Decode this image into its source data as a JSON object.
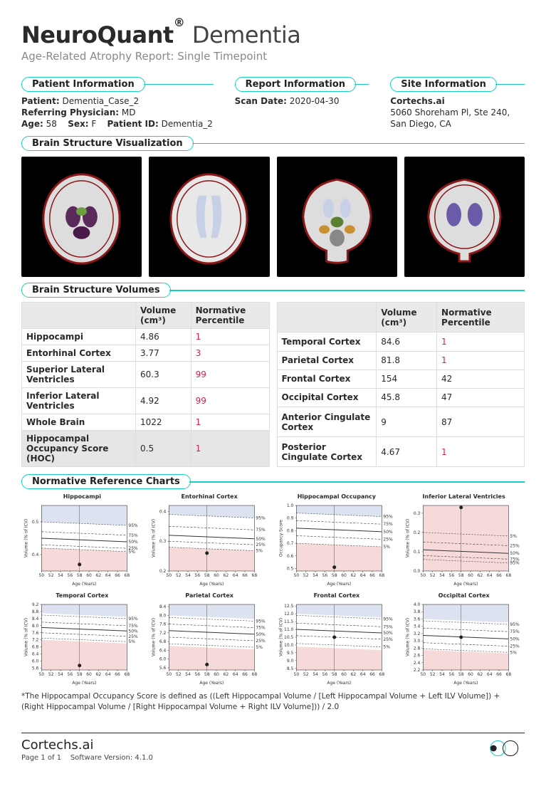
{
  "colors": {
    "teal": "#15d0c2",
    "red": "#d02050",
    "pink_fill": "#f6dada",
    "blue_fill": "#dce2ef",
    "grid": "#ddd",
    "text": "#2a2a2a"
  },
  "header": {
    "brand_strong": "NeuroQuant",
    "brand_sup": "®",
    "brand_light": "Dementia",
    "subtitle": "Age-Related Atrophy Report: Single Timepoint"
  },
  "info": {
    "patient": {
      "title": "Patient Information",
      "name_label": "Patient:",
      "name": "Dementia_Case_2",
      "ref_label": "Referring Physician:",
      "ref": "MD",
      "age_label": "Age:",
      "age": "58",
      "sex_label": "Sex:",
      "sex": "F",
      "pid_label": "Patient ID:",
      "pid": "Dementia_2"
    },
    "report": {
      "title": "Report Information",
      "scan_label": "Scan Date:",
      "scan": "2020-04-30"
    },
    "site": {
      "title": "Site Information",
      "name": "Cortechs.ai",
      "addr1": "5060 Shoreham Pl, Ste 240,",
      "addr2": "San Diego, CA"
    }
  },
  "viz_title": "Brain Structure Visualization",
  "vol_title": "Brain Structure Volumes",
  "table_headers": {
    "vol": "Volume (cm³)",
    "pct": "Normative Percentile"
  },
  "left_rows": [
    {
      "label": "Hippocampi",
      "vol": "4.86",
      "pct": "1",
      "red": true
    },
    {
      "label": "Entorhinal Cortex",
      "vol": "3.77",
      "pct": "3",
      "red": true
    },
    {
      "label": "Superior Lateral Ventricles",
      "vol": "60.3",
      "pct": "99",
      "red": true
    },
    {
      "label": "Inferior Lateral Ventricles",
      "vol": "4.92",
      "pct": "99",
      "red": true
    },
    {
      "label": "Whole Brain",
      "vol": "1022",
      "pct": "1",
      "red": true
    },
    {
      "label": "Hippocampal Occupancy Score (HOC)",
      "vol": "0.5",
      "pct": "1",
      "red": true,
      "hoc": true
    }
  ],
  "right_rows": [
    {
      "label": "Temporal Cortex",
      "vol": "84.6",
      "pct": "1",
      "red": true
    },
    {
      "label": "Parietal Cortex",
      "vol": "81.8",
      "pct": "1",
      "red": true
    },
    {
      "label": "Frontal Cortex",
      "vol": "154",
      "pct": "42",
      "red": false
    },
    {
      "label": "Occipital Cortex",
      "vol": "45.8",
      "pct": "47",
      "red": false
    },
    {
      "label": "Anterior Cingulate Cortex",
      "vol": "9",
      "pct": "87",
      "red": false
    },
    {
      "label": "Posterior Cingulate Cortex",
      "vol": "4.67",
      "pct": "1",
      "red": true
    }
  ],
  "charts_title": "Normative Reference Charts",
  "charts": [
    {
      "title": "Hippocampi",
      "ylabel": "Volume (% of ICV)",
      "yticks": [
        "0.4",
        "0.5"
      ],
      "ylim": [
        0.35,
        0.55
      ],
      "pt": [
        58,
        0.37
      ],
      "pink_top": 0.42,
      "blue_bot": 0.5,
      "curves": [
        0.5,
        0.47,
        0.45,
        0.43,
        0.42
      ]
    },
    {
      "title": "Entorhinal Cortex",
      "ylabel": "Volume (% of ICV)",
      "yticks": [
        "0.2",
        "0.3",
        "0.4"
      ],
      "ylim": [
        0.2,
        0.42
      ],
      "pt": [
        58,
        0.26
      ],
      "pink_top": 0.28,
      "blue_bot": 0.39,
      "curves": [
        0.39,
        0.35,
        0.32,
        0.3,
        0.28
      ]
    },
    {
      "title": "Hippocampal Occupancy",
      "ylabel": "Occupancy Score",
      "yticks": [
        "0.5",
        "0.6",
        "0.7",
        "0.8",
        "0.9",
        "1.0"
      ],
      "ylim": [
        0.48,
        1.0
      ],
      "pt": [
        58,
        0.51
      ],
      "pink_top": 0.7,
      "blue_bot": 0.94,
      "curves": [
        0.94,
        0.88,
        0.82,
        0.76,
        0.7
      ]
    },
    {
      "title": "Inferior Lateral Ventricles",
      "ylabel": "Volume (% of ICV)",
      "yticks": [
        "0.0",
        "0.1",
        "0.2",
        "0.3"
      ],
      "ylim": [
        0.0,
        0.34
      ],
      "pt": [
        58,
        0.33
      ],
      "pink_top": 0.34,
      "pink_invert": true,
      "blue_bot": 0.0,
      "curves": [
        0.06,
        0.08,
        0.11,
        0.15,
        0.2
      ],
      "red_on_top": true
    },
    {
      "title": "Temporal Cortex",
      "ylabel": "Volume (% of ICV)",
      "yticks": [
        "5.6",
        "6.0",
        "6.4",
        "6.8",
        "7.2",
        "7.6",
        "8.0",
        "8.4",
        "8.8",
        "9.2"
      ],
      "ylim": [
        5.5,
        9.2
      ],
      "pt": [
        58,
        5.75
      ],
      "pink_top": 7.2,
      "blue_bot": 8.7,
      "curves": [
        8.6,
        8.2,
        7.9,
        7.6,
        7.3
      ]
    },
    {
      "title": "Parietal Cortex",
      "ylabel": "Volume (% of ICV)",
      "yticks": [
        "5.6",
        "6.0",
        "6.4",
        "6.8",
        "7.2",
        "7.6",
        "8.0",
        "8.4"
      ],
      "ylim": [
        5.5,
        8.5
      ],
      "pt": [
        58,
        5.75
      ],
      "pink_top": 6.6,
      "blue_bot": 8.0,
      "curves": [
        7.9,
        7.6,
        7.3,
        7.0,
        6.7
      ]
    },
    {
      "title": "Frontal Cortex",
      "ylabel": "Volume (% of ICV)",
      "yticks": [
        "8.5",
        "9.0",
        "9.5",
        "10.0",
        "10.5",
        "11.0",
        "11.5",
        "12.0",
        "12.5"
      ],
      "ylim": [
        8.4,
        12.6
      ],
      "pt": [
        58,
        10.5
      ],
      "pink_top": 9.9,
      "blue_bot": 12.0,
      "curves": [
        11.9,
        11.4,
        11.0,
        10.6,
        10.1
      ]
    },
    {
      "title": "Occipital Cortex",
      "ylabel": "Volume (% of ICV)",
      "yticks": [
        "2.2",
        "2.4",
        "2.6",
        "2.8",
        "3.0",
        "3.2",
        "3.4",
        "3.6",
        "3.8",
        "4.0"
      ],
      "ylim": [
        2.2,
        4.0
      ],
      "pt": [
        58,
        3.1
      ],
      "pink_top": 2.75,
      "blue_bot": 3.6,
      "curves": [
        3.55,
        3.35,
        3.15,
        2.95,
        2.78
      ]
    }
  ],
  "xlabel": "Age (Years)",
  "xticks": [
    50,
    52,
    54,
    56,
    58,
    60,
    62,
    64,
    66,
    68
  ],
  "pct_labels": [
    "95%",
    "75%",
    "50%",
    "25%",
    "5%"
  ],
  "footnote": "*The Hippocampal Occupancy Score is defined as ((Left Hippocampal Volume / [Left Hippocampal Volume + Left ILV Volume]) + (Right Hippocampal Volume / [Right Hippocampal Volume + Right ILV Volume])) / 2.0",
  "footer": {
    "brand": "Cortechs.ai",
    "page": "Page 1 of 1",
    "sw_label": "Software Version:",
    "sw": "4.1.0"
  }
}
